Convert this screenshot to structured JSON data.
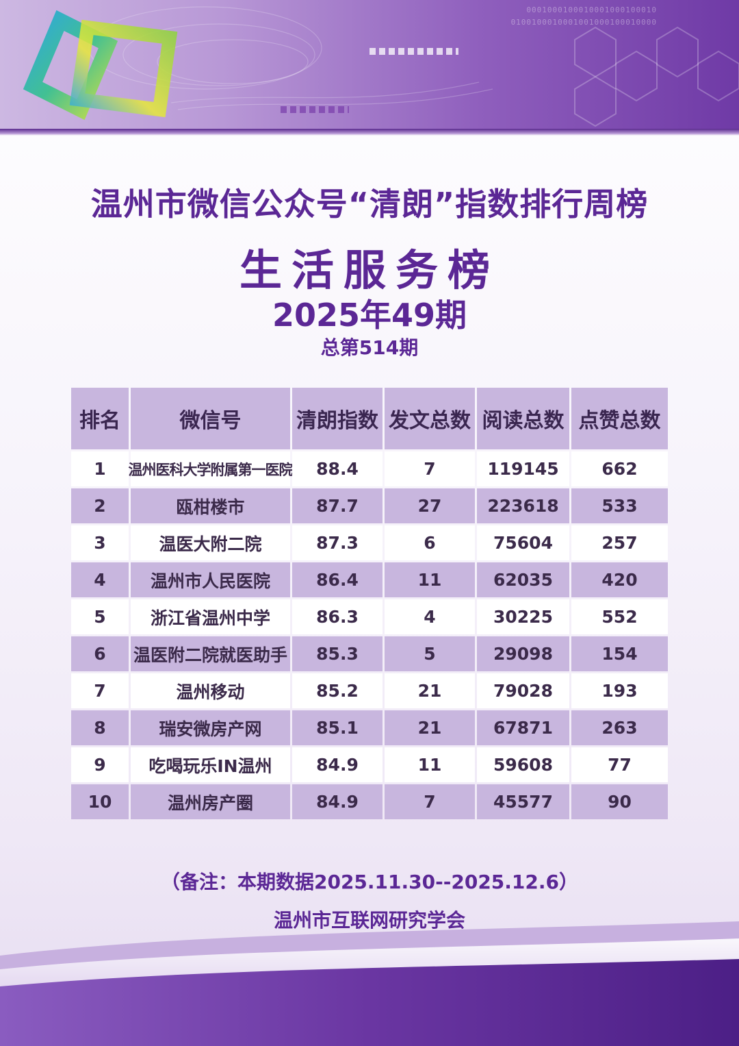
{
  "poster": {
    "title": "温州市微信公众号“清朗”指数排行周榜",
    "category": "生活服务榜",
    "issue": "2025年49期",
    "total_issue": "总第514期",
    "banner_binary_1": "0001000100010001000100010",
    "banner_binary_2": "0100100010001001000100010000"
  },
  "table": {
    "headers": [
      "排名",
      "微信号",
      "清朗指数",
      "发文总数",
      "阅读总数",
      "点赞总数"
    ],
    "rows": [
      [
        "1",
        "温州医科大学附属第一医院",
        "88.4",
        "7",
        "119145",
        "662"
      ],
      [
        "2",
        "瓯柑楼市",
        "87.7",
        "27",
        "223618",
        "533"
      ],
      [
        "3",
        "温医大附二院",
        "87.3",
        "6",
        "75604",
        "257"
      ],
      [
        "4",
        "温州市人民医院",
        "86.4",
        "11",
        "62035",
        "420"
      ],
      [
        "5",
        "浙江省温州中学",
        "86.3",
        "4",
        "30225",
        "552"
      ],
      [
        "6",
        "温医附二院就医助手",
        "85.3",
        "5",
        "29098",
        "154"
      ],
      [
        "7",
        "温州移动",
        "85.2",
        "21",
        "79028",
        "193"
      ],
      [
        "8",
        "瑞安微房产网",
        "85.1",
        "21",
        "67871",
        "263"
      ],
      [
        "9",
        "吃喝玩乐IN温州",
        "84.9",
        "11",
        "59608",
        "77"
      ],
      [
        "10",
        "温州房产圈",
        "84.9",
        "7",
        "45577",
        "90"
      ]
    ]
  },
  "footer": {
    "note": "（备注：本期数据2025.11.30--2025.12.6）",
    "organization": "温州市互联网研究学会"
  },
  "colors": {
    "primary": "#5b2795",
    "header_cell": "#c8b6de",
    "stripe": "#c8b6de",
    "text": "#3b2a4a"
  },
  "icons": {
    "logo": "interlocking-squares-logo"
  }
}
